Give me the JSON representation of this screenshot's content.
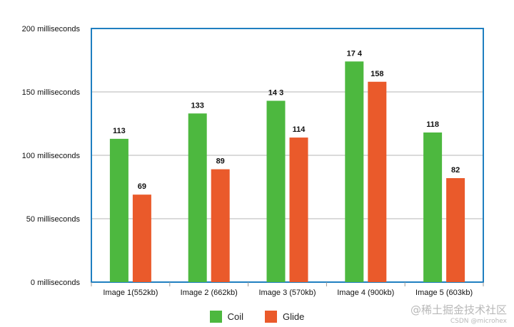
{
  "chart_data": {
    "type": "bar",
    "categories": [
      "Image 1(552kb)",
      "Image 2 (662kb)",
      "Image 3 (570kb)",
      "Image 4 (900kb)",
      "Image 5 (603kb)"
    ],
    "series": [
      {
        "name": "Coil",
        "color": "#4db83f",
        "values": [
          113,
          133,
          143,
          174,
          118
        ],
        "labels": [
          "113",
          "133",
          "14 3",
          "17 4",
          "118"
        ]
      },
      {
        "name": "Glide",
        "color": "#ea5a2b",
        "values": [
          69,
          89,
          114,
          158,
          82
        ],
        "labels": [
          "69",
          "89",
          "114",
          "158",
          "82"
        ]
      }
    ],
    "y_ticks": [
      {
        "value": 0,
        "label": "0 milliseconds"
      },
      {
        "value": 50,
        "label": "50 milliseconds"
      },
      {
        "value": 100,
        "label": "100 milliseconds"
      },
      {
        "value": 150,
        "label": "150 milliseconds"
      },
      {
        "value": 200,
        "label": "200 milliseconds"
      }
    ],
    "ylim": [
      0,
      200
    ],
    "grid": true,
    "legend_position": "bottom-center",
    "frame_color": "#1f7fc0"
  },
  "watermark": {
    "line1": "@稀土掘金技术社区",
    "line2": "CSDN @microhex"
  }
}
